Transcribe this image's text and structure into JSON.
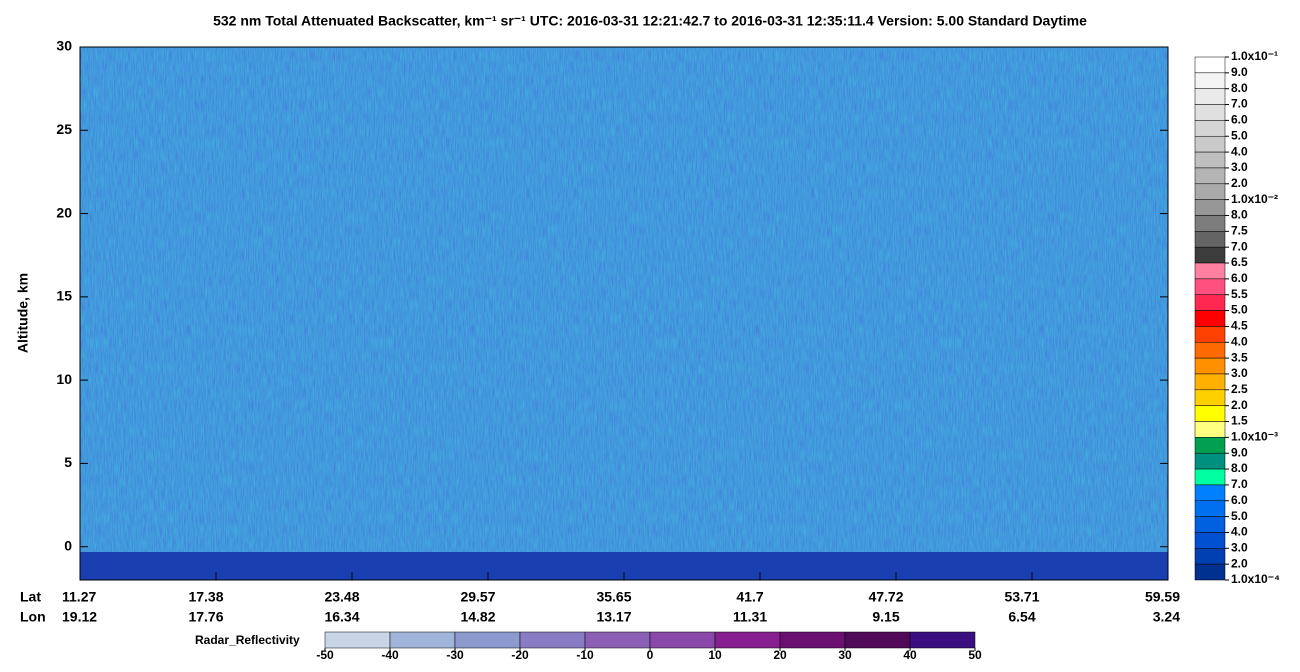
{
  "chart_data": {
    "type": "curtain",
    "title": "532 nm Total Attenuated Backscatter, km⁻¹ sr⁻¹    UTC:  2016-03-31 12:21:42.7  to  2016-03-31 12:35:11.4    Version: 5.00  Standard  Daytime",
    "y_label": "Altitude, km",
    "ylim": [
      -2,
      30
    ],
    "yticks": [
      0,
      5,
      10,
      15,
      20,
      25,
      30
    ],
    "lat_label": "Lat",
    "lon_label": "Lon",
    "lat": [
      11.27,
      17.38,
      23.48,
      29.57,
      35.65,
      41.7,
      47.72,
      53.71,
      59.59
    ],
    "lon": [
      19.12,
      17.76,
      16.34,
      14.82,
      13.17,
      11.31,
      9.15,
      6.54,
      3.24
    ],
    "backscatter_levels": [
      {
        "value": 0.1,
        "label": "1.0x10⁻¹"
      },
      {
        "value": 0.09,
        "label": "9.0"
      },
      {
        "value": 0.08,
        "label": "8.0"
      },
      {
        "value": 0.07,
        "label": "7.0"
      },
      {
        "value": 0.06,
        "label": "6.0"
      },
      {
        "value": 0.05,
        "label": "5.0"
      },
      {
        "value": 0.04,
        "label": "4.0"
      },
      {
        "value": 0.03,
        "label": "3.0"
      },
      {
        "value": 0.02,
        "label": "2.0"
      },
      {
        "value": 0.01,
        "label": "1.0x10⁻²"
      },
      {
        "value": 0.008,
        "label": "8.0"
      },
      {
        "value": 0.0075,
        "label": "7.5"
      },
      {
        "value": 0.007,
        "label": "7.0"
      },
      {
        "value": 0.0065,
        "label": "6.5"
      },
      {
        "value": 0.006,
        "label": "6.0"
      },
      {
        "value": 0.0055,
        "label": "5.5"
      },
      {
        "value": 0.005,
        "label": "5.0"
      },
      {
        "value": 0.0045,
        "label": "4.5"
      },
      {
        "value": 0.004,
        "label": "4.0"
      },
      {
        "value": 0.0035,
        "label": "3.5"
      },
      {
        "value": 0.003,
        "label": "3.0"
      },
      {
        "value": 0.0025,
        "label": "2.5"
      },
      {
        "value": 0.002,
        "label": "2.0"
      },
      {
        "value": 0.0015,
        "label": "1.5"
      },
      {
        "value": 0.001,
        "label": "1.0x10⁻³"
      },
      {
        "value": 0.0009,
        "label": "9.0"
      },
      {
        "value": 0.0008,
        "label": "8.0"
      },
      {
        "value": 0.0007,
        "label": "7.0"
      },
      {
        "value": 0.0006,
        "label": "6.0"
      },
      {
        "value": 0.0005,
        "label": "5.0"
      },
      {
        "value": 0.0004,
        "label": "4.0"
      },
      {
        "value": 0.0003,
        "label": "3.0"
      },
      {
        "value": 0.0002,
        "label": "2.0"
      },
      {
        "value": 0.0001,
        "label": "1.0x10⁻⁴"
      }
    ],
    "backscatter_colors": [
      "#ffffff",
      "#f4f4f4",
      "#eaeaea",
      "#e0e0e0",
      "#d5d5d5",
      "#cacaca",
      "#bfbfbf",
      "#b4b4b4",
      "#a9a9a9",
      "#969696",
      "#7d7d7d",
      "#646464",
      "#3c3c3c",
      "#ff80a0",
      "#ff5080",
      "#ff2850",
      "#ff0000",
      "#ff4000",
      "#ff6a00",
      "#ff9000",
      "#ffb000",
      "#ffd000",
      "#ffff00",
      "#ffff80",
      "#00a050",
      "#009080",
      "#00ffa0",
      "#0080ff",
      "#0070f0",
      "#0060e0",
      "#0050d0",
      "#0040b0",
      "#003090"
    ],
    "radar_label": "Radar_Reflectivity",
    "radar_ticks": [
      -50,
      -40,
      -30,
      -20,
      -10,
      0,
      10,
      20,
      30,
      40,
      50
    ],
    "radar_colors": [
      "#c8d6e8",
      "#9fb4d8",
      "#8c9ad0",
      "#8a7cc4",
      "#8a5fb4",
      "#8a48a8",
      "#86208e",
      "#6a1070",
      "#500a58",
      "#3a1080"
    ]
  }
}
